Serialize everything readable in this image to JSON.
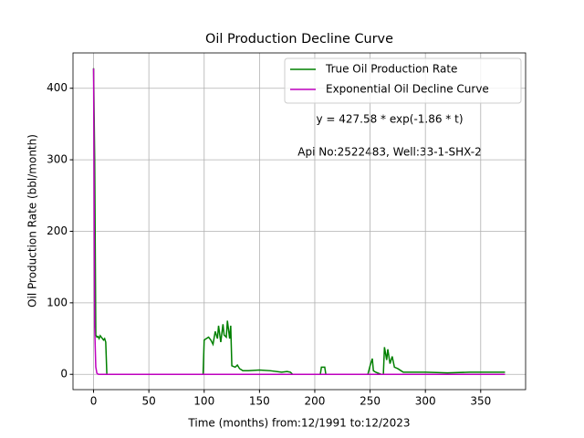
{
  "chart_data": {
    "type": "line",
    "title": "Oil Production Decline Curve",
    "xlabel": "Time (months) from:12/1991 to:12/2023",
    "ylabel": "Oil Production Rate (bbl/month)",
    "annotations": [
      "y = 427.58 * exp(-1.86 * t)",
      "Api No:2522483, Well:33-1-SHX-2"
    ],
    "xlim": [
      -18.6,
      390.6
    ],
    "ylim": [
      -21.4,
      449.4
    ],
    "xticks": [
      0,
      50,
      100,
      150,
      200,
      250,
      300,
      350
    ],
    "yticks": [
      0,
      100,
      200,
      300,
      400
    ],
    "grid": true,
    "legend": "upper right",
    "series": [
      {
        "name": "True Oil Production Rate",
        "color": "#008000",
        "x": [
          0,
          1,
          2,
          3,
          4,
          5,
          6,
          7,
          8,
          9,
          10,
          11,
          12,
          99,
          100,
          102,
          104,
          106,
          108,
          110,
          112,
          113,
          115,
          117,
          118,
          120,
          121,
          123,
          124,
          125,
          128,
          130,
          132,
          135,
          140,
          150,
          160,
          170,
          175,
          178,
          180,
          205,
          206,
          209,
          210,
          248,
          250,
          252,
          253,
          255,
          260,
          262,
          263,
          265,
          266,
          268,
          270,
          272,
          275,
          278,
          280,
          300,
          320,
          340,
          360,
          372
        ],
        "values": [
          428,
          300,
          55,
          52,
          53,
          50,
          54,
          52,
          50,
          48,
          50,
          45,
          0,
          0,
          48,
          50,
          52,
          48,
          42,
          60,
          50,
          68,
          45,
          70,
          55,
          52,
          75,
          50,
          68,
          12,
          10,
          13,
          8,
          5,
          5,
          6,
          5,
          3,
          4,
          3,
          0,
          0,
          10,
          10,
          0,
          0,
          12,
          22,
          5,
          3,
          0,
          0,
          38,
          20,
          35,
          15,
          25,
          10,
          8,
          5,
          3,
          3,
          2,
          3,
          3,
          3
        ]
      },
      {
        "name": "Exponential Oil Decline Curve",
        "color": "#bf00bf",
        "x": [
          0,
          1,
          2,
          3,
          4,
          5,
          372
        ],
        "values": [
          427.58,
          66.4,
          10.3,
          1.6,
          0.25,
          0.04,
          0
        ]
      }
    ]
  }
}
